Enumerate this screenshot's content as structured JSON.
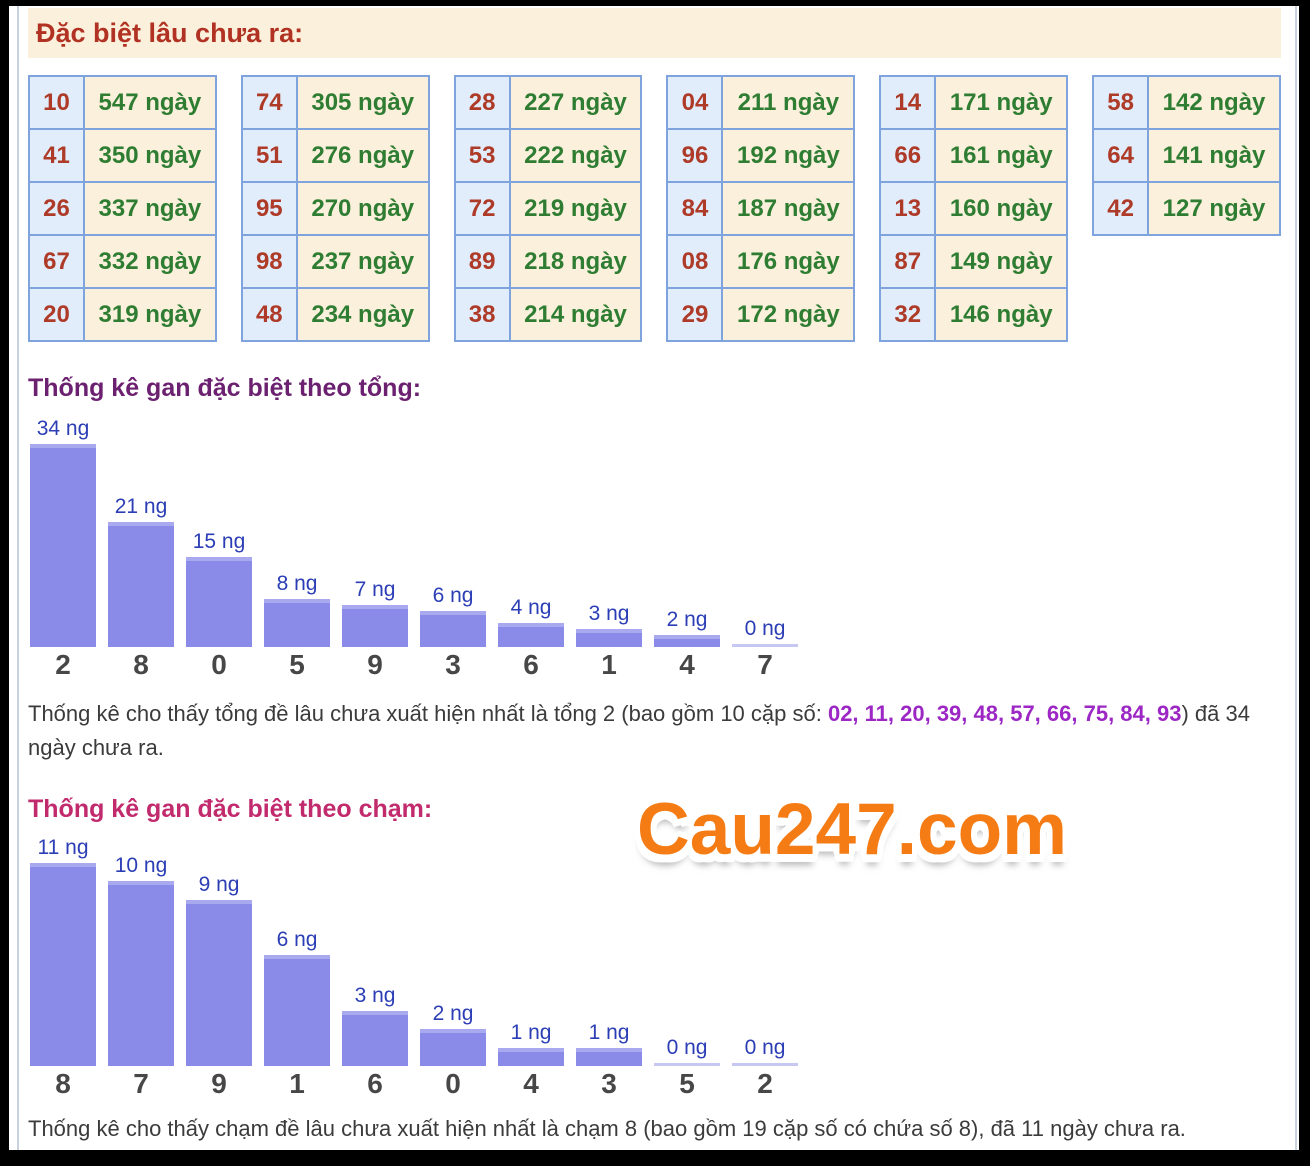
{
  "header": {
    "title": "Đặc biệt lâu chưa ra:"
  },
  "gan_tables": {
    "tables": [
      {
        "rows": [
          {
            "number": "10",
            "days": "547 ngày"
          },
          {
            "number": "41",
            "days": "350 ngày"
          },
          {
            "number": "26",
            "days": "337 ngày"
          },
          {
            "number": "67",
            "days": "332 ngày"
          },
          {
            "number": "20",
            "days": "319 ngày"
          }
        ]
      },
      {
        "rows": [
          {
            "number": "74",
            "days": "305 ngày"
          },
          {
            "number": "51",
            "days": "276 ngày"
          },
          {
            "number": "95",
            "days": "270 ngày"
          },
          {
            "number": "98",
            "days": "237 ngày"
          },
          {
            "number": "48",
            "days": "234 ngày"
          }
        ]
      },
      {
        "rows": [
          {
            "number": "28",
            "days": "227 ngày"
          },
          {
            "number": "53",
            "days": "222 ngày"
          },
          {
            "number": "72",
            "days": "219 ngày"
          },
          {
            "number": "89",
            "days": "218 ngày"
          },
          {
            "number": "38",
            "days": "214 ngày"
          }
        ]
      },
      {
        "rows": [
          {
            "number": "04",
            "days": "211 ngày"
          },
          {
            "number": "96",
            "days": "192 ngày"
          },
          {
            "number": "84",
            "days": "187 ngày"
          },
          {
            "number": "08",
            "days": "176 ngày"
          },
          {
            "number": "29",
            "days": "172 ngày"
          }
        ]
      },
      {
        "rows": [
          {
            "number": "14",
            "days": "171 ngày"
          },
          {
            "number": "66",
            "days": "161 ngày"
          },
          {
            "number": "13",
            "days": "160 ngày"
          },
          {
            "number": "87",
            "days": "149 ngày"
          },
          {
            "number": "32",
            "days": "146 ngày"
          }
        ]
      },
      {
        "rows": [
          {
            "number": "58",
            "days": "142 ngày"
          },
          {
            "number": "64",
            "days": "141 ngày"
          },
          {
            "number": "42",
            "days": "127 ngày"
          }
        ]
      }
    ]
  },
  "chart_data": [
    {
      "type": "bar",
      "title": "Thống kê gan đặc biệt theo tổng:",
      "categories": [
        "2",
        "8",
        "0",
        "5",
        "9",
        "3",
        "6",
        "1",
        "4",
        "7"
      ],
      "values": [
        34,
        21,
        15,
        8,
        7,
        6,
        4,
        3,
        2,
        0
      ],
      "bar_labels": [
        "34 ng",
        "21 ng",
        "15 ng",
        "8 ng",
        "7 ng",
        "6 ng",
        "4 ng",
        "3 ng",
        "2 ng",
        "0 ng"
      ],
      "xlabel": "",
      "ylabel": "",
      "ylim": [
        0,
        34
      ],
      "grid": false,
      "legend_position": "none",
      "value_label_position": "above-bar",
      "sorted": "descending"
    },
    {
      "type": "bar",
      "title": "Thống kê gan đặc biệt theo chạm:",
      "categories": [
        "8",
        "7",
        "9",
        "1",
        "6",
        "0",
        "4",
        "3",
        "5",
        "2"
      ],
      "values": [
        11,
        10,
        9,
        6,
        3,
        2,
        1,
        1,
        0,
        0
      ],
      "bar_labels": [
        "11 ng",
        "10 ng",
        "9 ng",
        "6 ng",
        "3 ng",
        "2 ng",
        "1 ng",
        "1 ng",
        "0 ng",
        "0 ng"
      ],
      "xlabel": "",
      "ylabel": "",
      "ylim": [
        0,
        11
      ],
      "grid": false,
      "legend_position": "none",
      "value_label_position": "above-bar",
      "sorted": "descending"
    }
  ],
  "summary_tong": {
    "text_before": "Thống kê cho thấy tổng đề lâu chưa xuất hiện nhất là tổng 2 (bao gồm 10 cặp số: ",
    "pairs": "02, 11, 20, 39, 48, 57, 66, 75, 84, 93",
    "text_after": ") đã 34 ngày chưa ra."
  },
  "summary_cham": {
    "text": "Thống kê cho thấy chạm đề lâu chưa xuất hiện nhất là chạm 8 (bao gồm 19 cặp số có chứa số 8), đã 11 ngày chưa ra."
  },
  "watermark": {
    "text": "Cau247.com"
  },
  "colors": {
    "header_red": "#b13222",
    "number_red": "#ae3a28",
    "days_green": "#2e7d32",
    "cell_blue_bg": "#e2edfb",
    "cell_cream_bg": "#faf0dc",
    "table_border_blue": "#7fa3dc",
    "title_tong_purple": "#6c2170",
    "title_cham_magenta": "#c22a6e",
    "bar_purple": "#8a8ae9",
    "bar_value_blue": "#2b3eb5",
    "category_gray": "#474747",
    "pairs_purple": "#9c27c4",
    "watermark_orange": "#f57c14"
  }
}
